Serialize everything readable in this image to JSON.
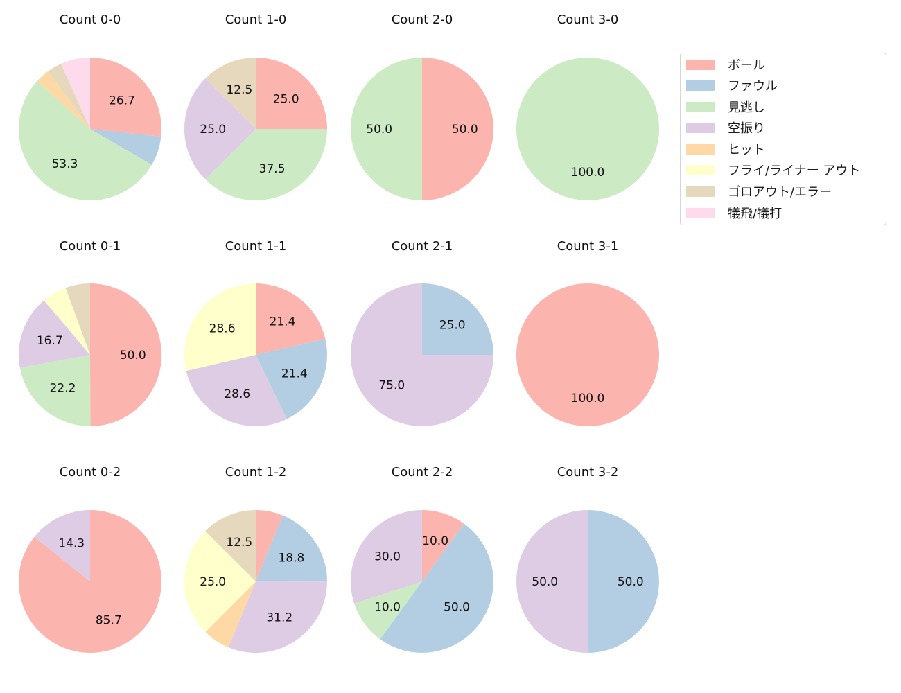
{
  "chart_data": {
    "type": "pie",
    "categories": [
      "ボール",
      "ファウル",
      "見逃し",
      "空振り",
      "ヒット",
      "フライ/ライナー アウト",
      "ゴロアウト/エラー",
      "犠飛/犠打"
    ],
    "colors": [
      "#fbb4ae",
      "#b3cde3",
      "#ccebc5",
      "#decbe4",
      "#fed9a6",
      "#ffffcc",
      "#e5d8bd",
      "#fddaec"
    ],
    "label_threshold": 8,
    "charts": [
      {
        "title": "Count 0-0",
        "row": 0,
        "col": 0,
        "values": [
          26.7,
          6.7,
          53.3,
          0,
          3.3,
          0,
          3.3,
          6.7
        ]
      },
      {
        "title": "Count 1-0",
        "row": 0,
        "col": 1,
        "values": [
          25.0,
          0,
          37.5,
          25.0,
          0,
          0,
          12.5,
          0
        ]
      },
      {
        "title": "Count 2-0",
        "row": 0,
        "col": 2,
        "values": [
          50.0,
          0,
          50.0,
          0,
          0,
          0,
          0,
          0
        ]
      },
      {
        "title": "Count 3-0",
        "row": 0,
        "col": 3,
        "values": [
          0,
          0,
          100.0,
          0,
          0,
          0,
          0,
          0
        ]
      },
      {
        "title": "Count 0-1",
        "row": 1,
        "col": 0,
        "values": [
          50.0,
          0,
          22.2,
          16.7,
          0,
          5.6,
          5.6,
          0
        ]
      },
      {
        "title": "Count 1-1",
        "row": 1,
        "col": 1,
        "values": [
          21.4,
          21.4,
          0,
          28.6,
          0,
          28.6,
          0,
          0
        ]
      },
      {
        "title": "Count 2-1",
        "row": 1,
        "col": 2,
        "values": [
          0,
          25.0,
          0,
          75.0,
          0,
          0,
          0,
          0
        ]
      },
      {
        "title": "Count 3-1",
        "row": 1,
        "col": 3,
        "values": [
          100.0,
          0,
          0,
          0,
          0,
          0,
          0,
          0
        ]
      },
      {
        "title": "Count 0-2",
        "row": 2,
        "col": 0,
        "values": [
          85.7,
          0,
          0,
          14.3,
          0,
          0,
          0,
          0
        ]
      },
      {
        "title": "Count 1-2",
        "row": 2,
        "col": 1,
        "values": [
          6.2,
          18.8,
          0,
          31.2,
          6.2,
          25.0,
          12.5,
          0
        ]
      },
      {
        "title": "Count 2-2",
        "row": 2,
        "col": 2,
        "values": [
          10.0,
          50.0,
          10.0,
          30.0,
          0,
          0,
          0,
          0
        ]
      },
      {
        "title": "Count 3-2",
        "row": 2,
        "col": 3,
        "values": [
          0,
          50.0,
          0,
          50.0,
          0,
          0,
          0,
          0
        ]
      }
    ],
    "legend_position": "upper right",
    "start_angle": 90,
    "direction": "clockwise"
  },
  "legend": {
    "items": [
      {
        "label": "ボール",
        "color": "#fbb4ae"
      },
      {
        "label": "ファウル",
        "color": "#b3cde3"
      },
      {
        "label": "見逃し",
        "color": "#ccebc5"
      },
      {
        "label": "空振り",
        "color": "#decbe4"
      },
      {
        "label": "ヒット",
        "color": "#fed9a6"
      },
      {
        "label": "フライ/ライナー アウト",
        "color": "#ffffcc"
      },
      {
        "label": "ゴロアウト/エラー",
        "color": "#e5d8bd"
      },
      {
        "label": "犠飛/犠打",
        "color": "#fddaec"
      }
    ]
  }
}
